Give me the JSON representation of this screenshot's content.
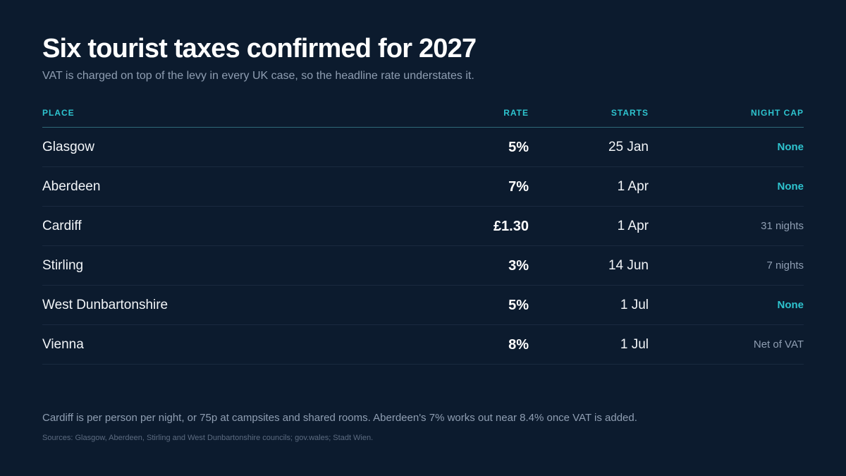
{
  "title": "Six tourist taxes confirmed for 2027",
  "subtitle": "VAT is charged on top of the levy in every UK case, so the headline rate understates it.",
  "colors": {
    "background": "#0c1b2e",
    "accent": "#2ec4cf",
    "muted": "#8f9eb2"
  },
  "chart_data": {
    "type": "table",
    "columns": [
      "PLACE",
      "RATE",
      "STARTS",
      "NIGHT CAP"
    ],
    "rows": [
      {
        "place": "Glasgow",
        "rate": "5%",
        "starts": "25 Jan",
        "cap": "None",
        "cap_highlight": true
      },
      {
        "place": "Aberdeen",
        "rate": "7%",
        "starts": "1 Apr",
        "cap": "None",
        "cap_highlight": true
      },
      {
        "place": "Cardiff",
        "rate": "£1.30",
        "starts": "1 Apr",
        "cap": "31 nights",
        "cap_highlight": false
      },
      {
        "place": "Stirling",
        "rate": "3%",
        "starts": "14 Jun",
        "cap": "7 nights",
        "cap_highlight": false
      },
      {
        "place": "West Dunbartonshire",
        "rate": "5%",
        "starts": "1 Jul",
        "cap": "None",
        "cap_highlight": true
      },
      {
        "place": "Vienna",
        "rate": "8%",
        "starts": "1 Jul",
        "cap": "Net of VAT",
        "cap_highlight": false
      }
    ]
  },
  "footnote": "Cardiff is per person per night, or 75p at campsites and shared rooms. Aberdeen's 7% works out near 8.4% once VAT is added.",
  "sources": "Sources: Glasgow, Aberdeen, Stirling and West Dunbartonshire councils; gov.wales; Stadt Wien."
}
